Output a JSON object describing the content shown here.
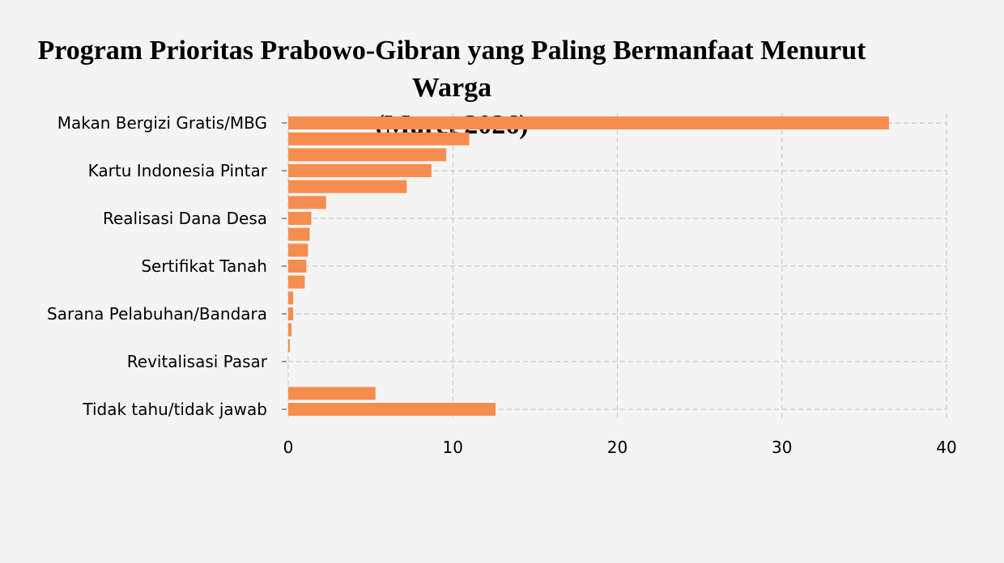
{
  "chart_data": {
    "type": "bar",
    "orientation": "horizontal",
    "title_line1": "Program Prioritas Prabowo-Gibran yang Paling Bermanfaat Menurut Warga",
    "title_line2": "(Maret 2026)",
    "xlabel": "",
    "ylabel": "",
    "xlim": [
      0,
      40
    ],
    "xticks": [
      0,
      10,
      20,
      30,
      40
    ],
    "grid": true,
    "bar_color": "#f58d4f",
    "categories": [
      "Makan Bergizi Gratis/MBG",
      "",
      "",
      "Kartu Indonesia Pintar",
      "",
      "",
      "Realisasi Dana Desa",
      "",
      "",
      "Sertifikat Tanah",
      "",
      "",
      "Sarana Pelabuhan/Bandara",
      "",
      "",
      "Revitalisasi Pasar",
      "",
      "",
      "Tidak tahu/tidak jawab"
    ],
    "values": [
      36.5,
      11.0,
      9.6,
      8.7,
      7.2,
      2.3,
      1.4,
      1.3,
      1.2,
      1.1,
      1.0,
      0.3,
      0.3,
      0.2,
      0.1,
      0,
      0,
      5.3,
      12.6
    ]
  }
}
